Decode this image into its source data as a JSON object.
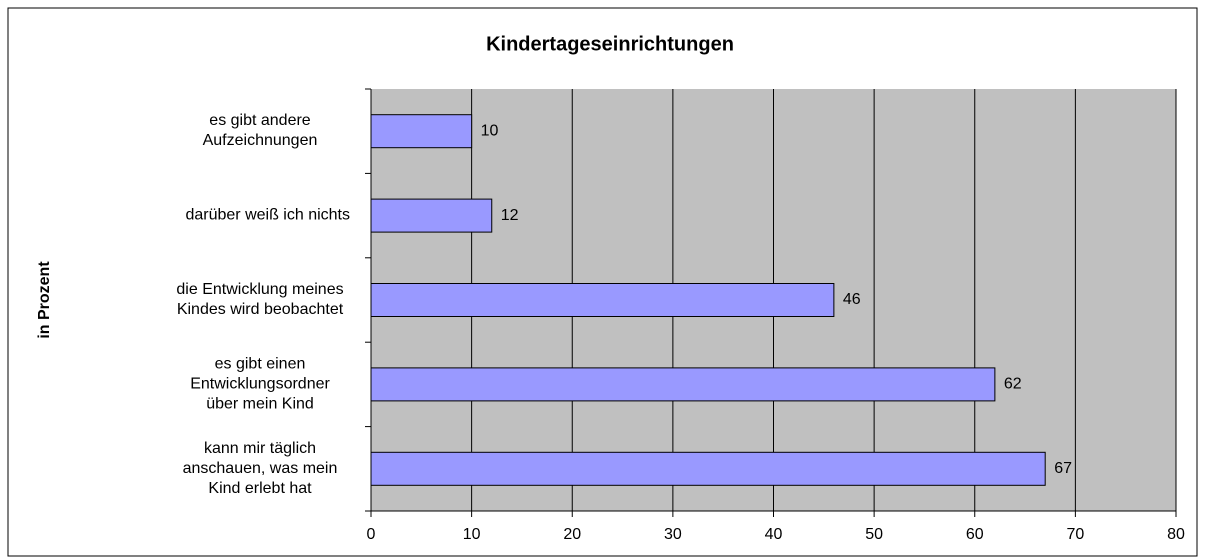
{
  "chart_data": {
    "type": "barh",
    "title": "Kindertageseinrichtungen",
    "ylabel": "in Prozent",
    "categories": [
      "es gibt andere\nAufzeichnungen",
      "darüber weiß ich nichts",
      "die Entwicklung meines\nKindes wird beobachtet",
      "es gibt einen\nEntwicklungsordner\nüber mein Kind",
      "kann mir täglich\nanschauen, was mein\nKind erlebt hat"
    ],
    "values": [
      10,
      12,
      46,
      62,
      67
    ],
    "color": "#9999ff",
    "xlim": [
      0,
      80
    ],
    "xticks": [
      0,
      10,
      20,
      30,
      40,
      50,
      60,
      70,
      80
    ],
    "grid": true
  }
}
